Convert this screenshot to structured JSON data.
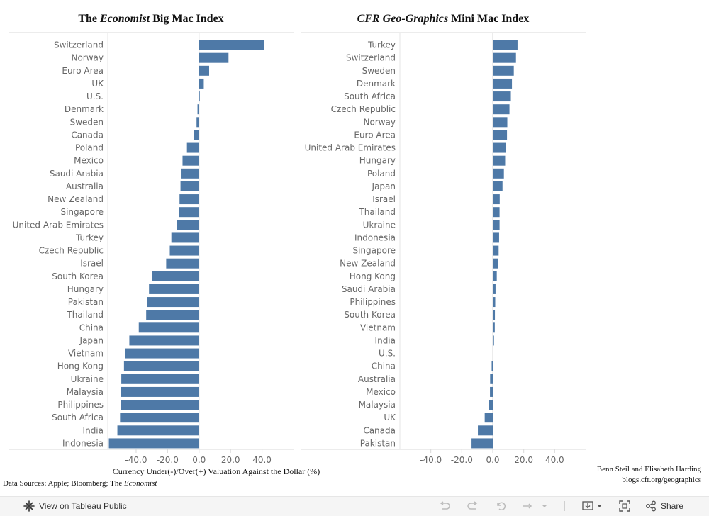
{
  "left_title": {
    "pre": "The",
    "italic": "Economist",
    "post": "Big Mac Index"
  },
  "right_title": {
    "italic": "CFR Geo-Graphics",
    "post": "Mini Mac Index"
  },
  "x_axis_label": "Currency Under(-)/Over(+) Valuation Against the Dollar (%)",
  "sources": {
    "pre": "Data Sources: Apple; Bloomberg; The",
    "italic": "Economist"
  },
  "credit": {
    "line1": "Benn Steil and Elisabeth Harding",
    "line2": "blogs.cfr.org/geographics"
  },
  "footer": {
    "view_label": "View on Tableau Public",
    "share_label": "Share"
  },
  "colors": {
    "bar": "#4e79a7",
    "label": "#666666",
    "tick": "#666666",
    "axis": "#d9d9d9"
  },
  "chart_data": [
    {
      "type": "bar",
      "orientation": "horizontal",
      "title": "The Economist Big Mac Index",
      "xlim": [
        -58,
        60
      ],
      "ticks": [
        -40,
        -20,
        0,
        20,
        40
      ],
      "tick_labels": [
        "-40.0",
        "-20.0",
        "0.0",
        "20.0",
        "40.0"
      ],
      "categories": [
        "Switzerland",
        "Norway",
        "Euro Area",
        "UK",
        "U.S.",
        "Denmark",
        "Sweden",
        "Canada",
        "Poland",
        "Mexico",
        "Saudi Arabia",
        "Australia",
        "New Zealand",
        "Singapore",
        "United Arab Emirates",
        "Turkey",
        "Czech Republic",
        "Israel",
        "South Korea",
        "Hungary",
        "Pakistan",
        "Thailand",
        "China",
        "Japan",
        "Vietnam",
        "Hong Kong",
        "Ukraine",
        "Malaysia",
        "Philippines",
        "South Africa",
        "India",
        "Indonesia"
      ],
      "values": [
        41.4,
        18.7,
        6.4,
        3.0,
        0.0,
        -1.0,
        -1.6,
        -3.2,
        -7.7,
        -10.5,
        -11.6,
        -11.8,
        -12.4,
        -12.7,
        -14.2,
        -17.6,
        -18.6,
        -20.9,
        -29.9,
        -31.8,
        -33.1,
        -33.6,
        -38.3,
        -44.3,
        -47.0,
        -47.7,
        -49.4,
        -49.6,
        -49.7,
        -50.2,
        -51.9,
        -57.3
      ]
    },
    {
      "type": "bar",
      "orientation": "horizontal",
      "title": "CFR Geo-Graphics Mini Mac Index",
      "xlim": [
        -60,
        60
      ],
      "ticks": [
        -40,
        -20,
        0,
        20,
        40
      ],
      "tick_labels": [
        "-40.0",
        "-20.0",
        "0.0",
        "20.0",
        "40.0"
      ],
      "categories": [
        "Turkey",
        "Switzerland",
        "Sweden",
        "Denmark",
        "South Africa",
        "Czech Republic",
        "Norway",
        "Euro Area",
        "United Arab Emirates",
        "Hungary",
        "Poland",
        "Japan",
        "Israel",
        "Thailand",
        "Ukraine",
        "Indonesia",
        "Singapore",
        "New Zealand",
        "Hong Kong",
        "Saudi Arabia",
        "Philippines",
        "South Korea",
        "Vietnam",
        "India",
        "U.S.",
        "China",
        "Australia",
        "Mexico",
        "Malaysia",
        "UK",
        "Canada",
        "Pakistan"
      ],
      "values": [
        16.0,
        15.0,
        13.6,
        12.4,
        11.7,
        10.8,
        9.4,
        9.2,
        8.7,
        8.0,
        7.2,
        6.3,
        4.5,
        4.4,
        4.4,
        4.1,
        3.8,
        3.3,
        2.6,
        1.8,
        1.6,
        1.4,
        1.3,
        0.8,
        0.0,
        -0.7,
        -1.7,
        -1.8,
        -2.5,
        -5.2,
        -9.6,
        -13.7
      ]
    }
  ]
}
